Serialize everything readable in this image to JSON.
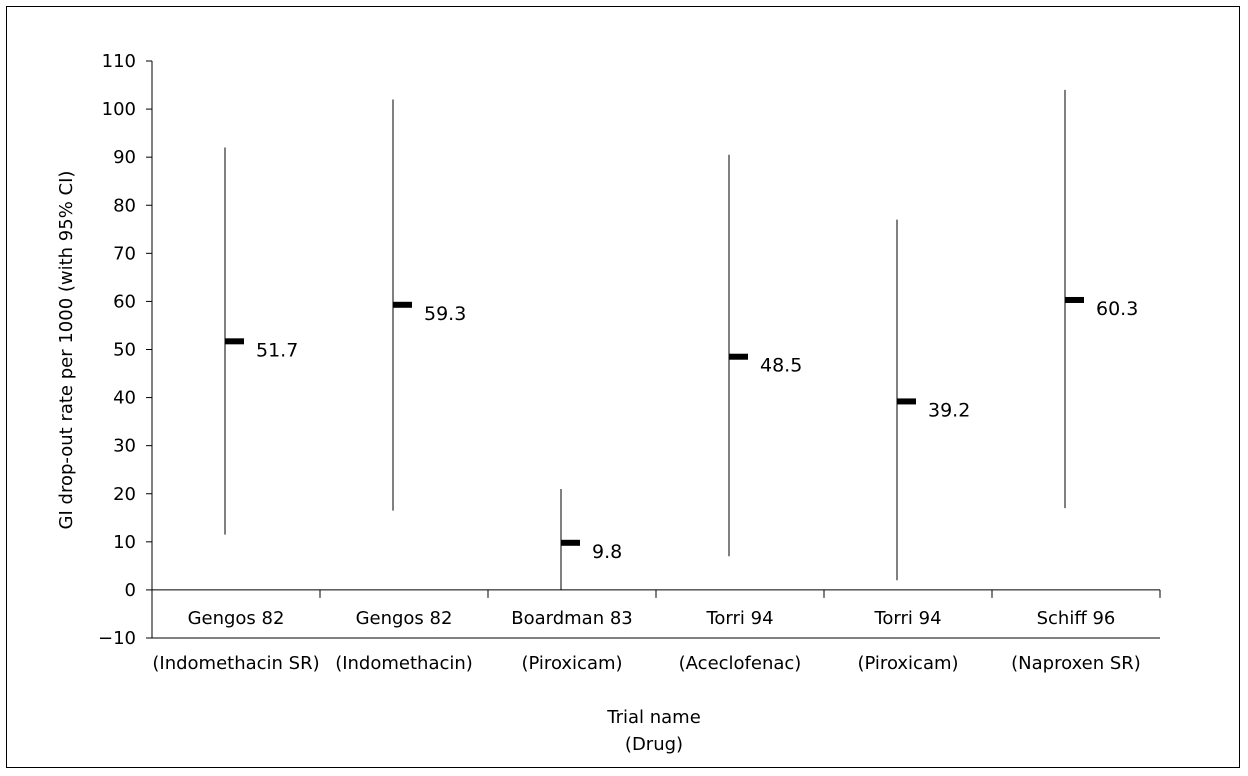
{
  "chart_data": {
    "type": "error_bar",
    "title": "",
    "xlabel_line1": "Trial name",
    "xlabel_line2": "(Drug)",
    "ylabel": "GI drop-out rate per 1000 (with 95% CI)",
    "ylim": [
      -10,
      110
    ],
    "yticks": [
      -10,
      0,
      10,
      20,
      30,
      40,
      50,
      60,
      70,
      80,
      90,
      100,
      110
    ],
    "ytick_labels": [
      "−10",
      "0",
      "10",
      "20",
      "30",
      "40",
      "50",
      "60",
      "70",
      "80",
      "90",
      "100",
      "110"
    ],
    "grid": false,
    "trials": [
      {
        "name": "Gengos 82",
        "drug": "(Indomethacin SR)",
        "point": 51.7,
        "point_label": "51.7",
        "ci_low": 11.5,
        "ci_high": 92
      },
      {
        "name": "Gengos 82",
        "drug": "(Indomethacin)",
        "point": 59.3,
        "point_label": "59.3",
        "ci_low": 16.5,
        "ci_high": 102
      },
      {
        "name": "Boardman 83",
        "drug": "(Piroxicam)",
        "point": 9.8,
        "point_label": "9.8",
        "ci_low": 0,
        "ci_high": 21
      },
      {
        "name": "Torri 94",
        "drug": "(Aceclofenac)",
        "point": 48.5,
        "point_label": "48.5",
        "ci_low": 7,
        "ci_high": 90.5
      },
      {
        "name": "Torri 94",
        "drug": "(Piroxicam)",
        "point": 39.2,
        "point_label": "39.2",
        "ci_low": 2,
        "ci_high": 77
      },
      {
        "name": "Schiff 96",
        "drug": "(Naproxen SR)",
        "point": 60.3,
        "point_label": "60.3",
        "ci_low": 17,
        "ci_high": 104
      }
    ]
  }
}
